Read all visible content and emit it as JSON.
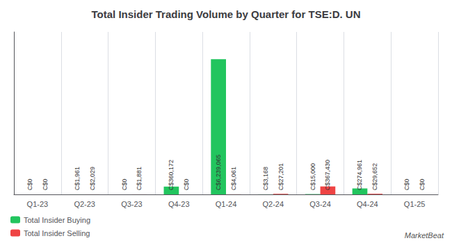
{
  "chart_data": {
    "type": "bar",
    "title": "Total Insider Trading Volume by Quarter for TSE:D. UN",
    "categories": [
      "Q1-23",
      "Q2-23",
      "Q3-23",
      "Q4-23",
      "Q1-24",
      "Q2-24",
      "Q3-24",
      "Q4-24",
      "Q1-25"
    ],
    "series": [
      {
        "name": "Total Insider Buying",
        "color": "#22c55e",
        "values": [
          0,
          1961,
          0,
          360172,
          6239065,
          3168,
          15000,
          274961,
          0
        ],
        "value_labels": [
          "C$0",
          "C$1,961",
          "C$0",
          "C$360,172",
          "C$6,239,065",
          "C$3,168",
          "C$15,000",
          "C$274,961",
          "C$0"
        ]
      },
      {
        "name": "Total Insider Selling",
        "color": "#ef4444",
        "values": [
          0,
          2029,
          1881,
          0,
          4061,
          27201,
          367430,
          29652,
          0
        ],
        "value_labels": [
          "C$0",
          "C$2,029",
          "C$1,881",
          "C$0",
          "C$4,061",
          "C$27,201",
          "C$367,430",
          "C$29,652",
          "C$0"
        ]
      }
    ],
    "ylim": [
      0,
      7500000
    ],
    "grid": true,
    "legend": "lower left",
    "data_labels": true,
    "tick_labels": "x",
    "annotations": [
      "MarketBeat"
    ]
  }
}
